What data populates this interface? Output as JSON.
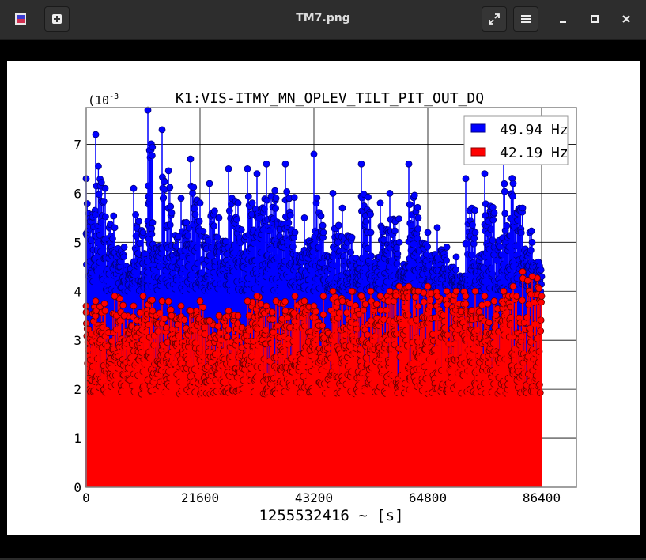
{
  "window": {
    "title": "TM7.png",
    "app_icon": "image-viewer-icon",
    "buttons": [
      "new-tab-icon",
      "fullscreen-icon",
      "menu-icon",
      "minimize-icon",
      "maximize-icon",
      "close-icon"
    ]
  },
  "chart_data": {
    "type": "scatter",
    "title": "K1:VIS-ITMY_MN_OPLEV_TILT_PIT_OUT_DQ",
    "xlabel": "1255532416 ~ [s]",
    "ylabel": "",
    "y_scale_label": "(10",
    "y_scale_exponent": "-3",
    "xlim": [
      0,
      93000
    ],
    "ylim": [
      0,
      0.00775
    ],
    "x_ticks": [
      "0",
      "21600",
      "43200",
      "64800",
      "86400"
    ],
    "x_tick_values": [
      0,
      21600,
      43200,
      64800,
      86400
    ],
    "y_ticks": [
      "0",
      "1",
      "2",
      "3",
      "4",
      "5",
      "6",
      "7"
    ],
    "y_tick_values": [
      0,
      0.001,
      0.002,
      0.003,
      0.004,
      0.005,
      0.006,
      0.007
    ],
    "grid": true,
    "legend_position": "top-right",
    "style": "stem plot with circular markers, sampled every ~60 s over 86400 s",
    "series": [
      {
        "name": "49.94 Hz",
        "color": "#0000ff",
        "x": [
          0,
          1800,
          3600,
          5400,
          7200,
          9000,
          10800,
          11700,
          12600,
          14400,
          16200,
          18000,
          19800,
          21600,
          23400,
          25200,
          27000,
          28800,
          30600,
          32400,
          34200,
          36000,
          37800,
          39600,
          41400,
          43200,
          45000,
          46800,
          48600,
          50400,
          52200,
          54000,
          55800,
          57600,
          59400,
          61200,
          63000,
          64800,
          66600,
          68400,
          70200,
          72000,
          73800,
          75600,
          77400,
          79200,
          81000,
          82800,
          84600,
          86400
        ],
        "values": [
          0.0063,
          0.0072,
          0.0061,
          0.0053,
          0.0049,
          0.0061,
          0.0052,
          0.0077,
          0.0054,
          0.0073,
          0.0056,
          0.0059,
          0.0067,
          0.0058,
          0.0062,
          0.0055,
          0.0065,
          0.0058,
          0.0065,
          0.0064,
          0.0066,
          0.0059,
          0.0066,
          0.0052,
          0.0055,
          0.0068,
          0.0052,
          0.006,
          0.0057,
          0.0051,
          0.0066,
          0.0052,
          0.0058,
          0.006,
          0.005,
          0.0066,
          0.0055,
          0.0052,
          0.0053,
          0.0049,
          0.0047,
          0.0063,
          0.0052,
          0.0064,
          0.0056,
          0.0069,
          0.0062,
          0.0057,
          0.005,
          0.0043
        ]
      },
      {
        "name": "42.19 Hz",
        "color": "#ff0000",
        "x": [
          0,
          1800,
          3600,
          5400,
          7200,
          9000,
          10800,
          12600,
          14400,
          16200,
          18000,
          19800,
          21600,
          23400,
          25200,
          27000,
          28800,
          30600,
          32400,
          34200,
          36000,
          37800,
          39600,
          41400,
          43200,
          45000,
          46800,
          48600,
          50400,
          52200,
          54000,
          55800,
          57600,
          59400,
          61200,
          63000,
          64800,
          66600,
          68400,
          70200,
          72000,
          73800,
          75600,
          77400,
          79200,
          81000,
          82800,
          84600,
          86400
        ],
        "values": [
          0.0037,
          0.0038,
          0.0036,
          0.0039,
          0.0035,
          0.0037,
          0.0039,
          0.0036,
          0.0038,
          0.0035,
          0.0037,
          0.0036,
          0.0038,
          0.0034,
          0.0035,
          0.0036,
          0.0035,
          0.0038,
          0.0039,
          0.0037,
          0.0038,
          0.0036,
          0.0039,
          0.0038,
          0.0037,
          0.0039,
          0.004,
          0.0038,
          0.004,
          0.0039,
          0.004,
          0.0039,
          0.004,
          0.0041,
          0.0041,
          0.004,
          0.0041,
          0.0039,
          0.004,
          0.004,
          0.0039,
          0.004,
          0.0039,
          0.0038,
          0.004,
          0.0041,
          0.0044,
          0.0043,
          0.0039
        ]
      }
    ]
  }
}
